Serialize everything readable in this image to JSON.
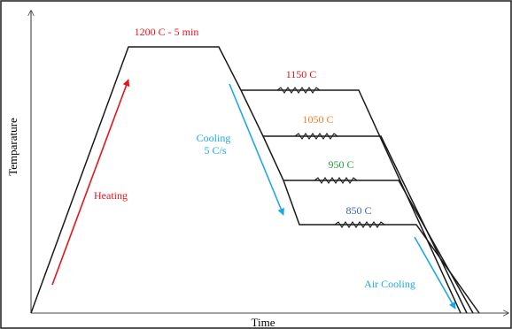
{
  "axes": {
    "x_label": "Time",
    "y_label": "Temparature"
  },
  "labels": {
    "hold": "1200 C - 5 min",
    "heating": "Heating",
    "cooling_line1": "Cooling",
    "cooling_line2": "5 C/s",
    "air_cooling": "Air Cooling"
  },
  "steps": [
    {
      "temperature": "1150 C",
      "color": "#e8141c"
    },
    {
      "temperature": "1050 C",
      "color": "#ef7d22"
    },
    {
      "temperature": "950 C",
      "color": "#1f9e3a"
    },
    {
      "temperature": "850 C",
      "color": "#3b5fc0"
    }
  ],
  "colors": {
    "hold_label": "#e8141c",
    "heating": "#e8141c",
    "cooling": "#1ea7e8",
    "air_cooling": "#1ea7e8"
  }
}
